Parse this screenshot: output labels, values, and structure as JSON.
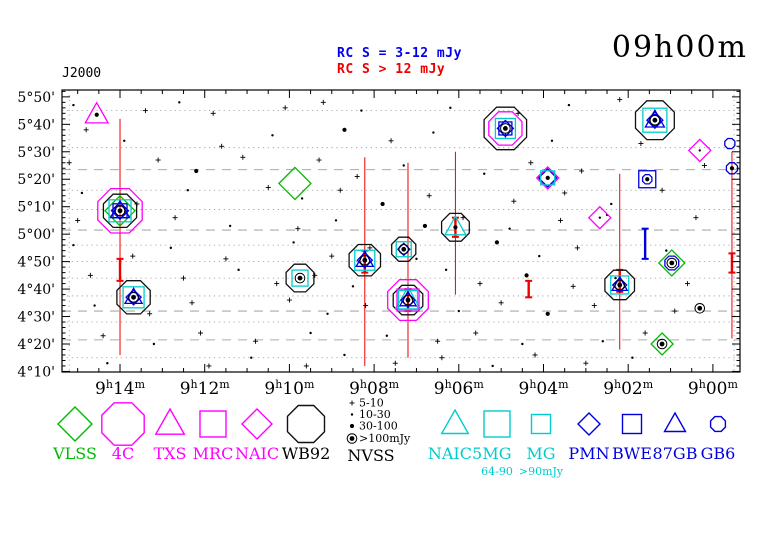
{
  "plot": {
    "title": "09h00m",
    "coord_label": "J2000",
    "flux_legend": [
      {
        "text": "RC S = 3-12 mJy",
        "color": "#0000ee"
      },
      {
        "text": "RC S > 12 mJy",
        "color": "#ee0000"
      }
    ]
  },
  "chart_data": {
    "type": "scatter",
    "title": "09h00m",
    "ra_range_min": [
      15.37,
      -0.64
    ],
    "dec_range_arcmin": [
      249.8,
      352.5
    ],
    "x_ticks": [
      {
        "ra_min": 14,
        "label": "9h14m"
      },
      {
        "ra_min": 12,
        "label": "9h12m"
      },
      {
        "ra_min": 10,
        "label": "9h10m"
      },
      {
        "ra_min": 8,
        "label": "9h08m"
      },
      {
        "ra_min": 6,
        "label": "9h06m"
      },
      {
        "ra_min": 4,
        "label": "9h04m"
      },
      {
        "ra_min": 2,
        "label": "9h02m"
      },
      {
        "ra_min": 0,
        "label": "9h00m"
      }
    ],
    "y_ticks": [
      {
        "dec_arcmin": 350,
        "label": "5°50'"
      },
      {
        "dec_arcmin": 340,
        "label": "5°40'"
      },
      {
        "dec_arcmin": 330,
        "label": "5°30'"
      },
      {
        "dec_arcmin": 320,
        "label": "5°20'"
      },
      {
        "dec_arcmin": 310,
        "label": "5°10'"
      },
      {
        "dec_arcmin": 300,
        "label": "5°00'"
      },
      {
        "dec_arcmin": 290,
        "label": "4°50'"
      },
      {
        "dec_arcmin": 280,
        "label": "4°40'"
      },
      {
        "dec_arcmin": 270,
        "label": "4°30'"
      },
      {
        "dec_arcmin": 260,
        "label": "4°20'"
      },
      {
        "dec_arcmin": 250,
        "label": "4°10'"
      }
    ],
    "dashed_dec_lines_arcmin": [
      323.5,
      301.5,
      272,
      261.5
    ],
    "dotted_dec_lines_arcmin": [
      345,
      331.5,
      316,
      309,
      296,
      290,
      284,
      277.5,
      268,
      255
    ],
    "dotted_ra_lines_min": [
      15.2,
      -0.5
    ],
    "catalog_styles": {
      "VLSS": {
        "shape": "diamond",
        "color": "#00bb00"
      },
      "4C": {
        "shape": "octagon",
        "color": "#ff00ff"
      },
      "TXS": {
        "shape": "triangle",
        "color": "#ff00ff"
      },
      "MRC": {
        "shape": "square",
        "color": "#ff00ff"
      },
      "NAIC": {
        "shape": "diamond",
        "color": "#ff00ff"
      },
      "WB92": {
        "shape": "octagon",
        "color": "#111111"
      },
      "NAIC5": {
        "shape": "triangle",
        "color": "#00cccc"
      },
      "MG": {
        "shape": "square",
        "color": "#00cccc"
      },
      "PMN": {
        "shape": "diamond",
        "color": "#0000dd"
      },
      "BWE": {
        "shape": "square",
        "color": "#0000dd"
      },
      "87GB": {
        "shape": "triangle",
        "color": "#0000dd"
      },
      "GB6": {
        "shape": "octagon",
        "color": "#0000dd"
      }
    },
    "sources": [
      {
        "ra_min": 14.55,
        "dec_arcmin": 343.5,
        "symbols": [
          [
            "TXS",
            24
          ],
          [
            "N2",
            0
          ]
        ]
      },
      {
        "ra_min": 14.0,
        "dec_arcmin": 308.5,
        "symbols": [
          [
            "4C",
            48
          ],
          [
            "WB92",
            36
          ],
          [
            "VLSS",
            30
          ],
          [
            "MG",
            22
          ],
          [
            "87GB",
            20
          ],
          [
            "PMN",
            17
          ],
          [
            "BWE",
            14
          ],
          [
            "GB6",
            11
          ],
          [
            "N3",
            0
          ]
        ]
      },
      {
        "ra_min": 9.87,
        "dec_arcmin": 318.5,
        "symbols": [
          [
            "VLSS",
            32
          ]
        ]
      },
      {
        "ra_min": 13.68,
        "dec_arcmin": 277,
        "symbols": [
          [
            "WB92",
            36
          ],
          [
            "MG",
            21
          ],
          [
            "87GB",
            18
          ],
          [
            "PMN",
            15
          ],
          [
            "GB6",
            11
          ],
          [
            "N3",
            0
          ]
        ]
      },
      {
        "ra_min": 9.75,
        "dec_arcmin": 284,
        "symbols": [
          [
            "WB92",
            30
          ],
          [
            "MG",
            16
          ],
          [
            "N3",
            0
          ]
        ]
      },
      {
        "ra_min": 8.22,
        "dec_arcmin": 290.5,
        "symbols": [
          [
            "WB92",
            34
          ],
          [
            "MG",
            20
          ],
          [
            "87GB",
            18
          ],
          [
            "PMN",
            15
          ],
          [
            "N3",
            0
          ]
        ]
      },
      {
        "ra_min": 7.3,
        "dec_arcmin": 294.5,
        "symbols": [
          [
            "WB92",
            26
          ],
          [
            "MG",
            15
          ],
          [
            "PMN",
            12
          ],
          [
            "N3",
            0
          ]
        ]
      },
      {
        "ra_min": 7.2,
        "dec_arcmin": 276,
        "symbols": [
          [
            "4C",
            44
          ],
          [
            "WB92",
            32
          ],
          [
            "NAIC5",
            26
          ],
          [
            "MRC",
            22
          ],
          [
            "MG",
            19
          ],
          [
            "87GB",
            17
          ],
          [
            "PMN",
            14
          ],
          [
            "N3",
            0
          ]
        ]
      },
      {
        "ra_min": 6.08,
        "dec_arcmin": 302.5,
        "symbols": [
          [
            "WB92",
            30
          ],
          [
            "NAIC5",
            22
          ],
          [
            "N2",
            0
          ]
        ]
      },
      {
        "ra_min": 4.9,
        "dec_arcmin": 338.5,
        "symbols": [
          [
            "WB92",
            46
          ],
          [
            "4C",
            36
          ],
          [
            "MG",
            20
          ],
          [
            "PMN",
            16
          ],
          [
            "BWE",
            13
          ],
          [
            "N3",
            0
          ]
        ]
      },
      {
        "ra_min": 3.9,
        "dec_arcmin": 320.5,
        "symbols": [
          [
            "NAIC",
            22
          ],
          [
            "PMN",
            18
          ],
          [
            "MG",
            14
          ],
          [
            "N2",
            0
          ]
        ]
      },
      {
        "ra_min": 1.37,
        "dec_arcmin": 341.5,
        "symbols": [
          [
            "WB92",
            42
          ],
          [
            "MG",
            24
          ],
          [
            "87GB",
            20
          ],
          [
            "PMN",
            16
          ],
          [
            "GB6",
            12
          ],
          [
            "N3",
            0
          ]
        ]
      },
      {
        "ra_min": 1.55,
        "dec_arcmin": 320,
        "symbols": [
          [
            "BWE",
            17
          ],
          [
            "GB6",
            10
          ],
          [
            "N2",
            0
          ]
        ]
      },
      {
        "ra_min": 2.67,
        "dec_arcmin": 306,
        "symbols": [
          [
            "NAIC",
            22
          ],
          [
            "N1",
            0
          ]
        ]
      },
      {
        "ra_min": 2.2,
        "dec_arcmin": 281.5,
        "symbols": [
          [
            "WB92",
            32
          ],
          [
            "MG",
            18
          ],
          [
            "87GB",
            16
          ],
          [
            "PMN",
            14
          ],
          [
            "N3",
            0
          ]
        ]
      },
      {
        "ra_min": 0.97,
        "dec_arcmin": 289.5,
        "symbols": [
          [
            "VLSS",
            26
          ],
          [
            "GB6",
            15
          ],
          [
            "N3",
            0
          ]
        ]
      },
      {
        "ra_min": 0.31,
        "dec_arcmin": 330.5,
        "symbols": [
          [
            "NAIC",
            22
          ],
          [
            "N1",
            0
          ]
        ]
      },
      {
        "ra_min": -0.45,
        "dec_arcmin": 324,
        "symbols": [
          [
            "GB6",
            12
          ],
          [
            "N2",
            0
          ]
        ]
      },
      {
        "ra_min": 1.2,
        "dec_arcmin": 260,
        "symbols": [
          [
            "VLSS",
            22
          ],
          [
            "N3",
            0
          ]
        ]
      },
      {
        "ra_min": 0.31,
        "dec_arcmin": 273,
        "symbols": [
          [
            "N3",
            0
          ]
        ]
      },
      {
        "ra_min": -0.4,
        "dec_arcmin": 333,
        "symbols": [
          [
            "GB6",
            11
          ]
        ]
      }
    ],
    "error_bars": [
      {
        "ra_min": 14.0,
        "dec_from": 256,
        "dec_to": 342,
        "color": "#ee0000",
        "thick": false,
        "caps": false
      },
      {
        "ra_min": 14.0,
        "dec_from": 283,
        "dec_to": 291,
        "color": "#ee0000",
        "thick": true,
        "caps": true
      },
      {
        "ra_min": 8.22,
        "dec_from": 252,
        "dec_to": 328,
        "color": "#ee0000",
        "thick": false,
        "caps": false
      },
      {
        "ra_min": 8.22,
        "dec_from": 286,
        "dec_to": 294,
        "color": "#ee0000",
        "thick": true,
        "caps": true
      },
      {
        "ra_min": 7.2,
        "dec_from": 255,
        "dec_to": 326,
        "color": "#ee0000",
        "thick": false,
        "caps": false
      },
      {
        "ra_min": 7.2,
        "dec_from": 272,
        "dec_to": 280,
        "color": "#ee0000",
        "thick": true,
        "caps": true
      },
      {
        "ra_min": 6.08,
        "dec_from": 278,
        "dec_to": 330,
        "color": "#ee0000",
        "thick": false,
        "caps": false
      },
      {
        "ra_min": 6.08,
        "dec_from": 299,
        "dec_to": 306,
        "color": "#ee0000",
        "thick": true,
        "caps": true
      },
      {
        "ra_min": 4.35,
        "dec_from": 277,
        "dec_to": 283,
        "color": "#ee0000",
        "thick": true,
        "caps": true
      },
      {
        "ra_min": 2.2,
        "dec_from": 258,
        "dec_to": 322,
        "color": "#ee0000",
        "thick": false,
        "caps": false
      },
      {
        "ra_min": 2.2,
        "dec_from": 279,
        "dec_to": 287,
        "color": "#ee0000",
        "thick": true,
        "caps": true
      },
      {
        "ra_min": 1.6,
        "dec_from": 291,
        "dec_to": 302,
        "color": "#0000dd",
        "thick": true,
        "caps": true
      },
      {
        "ra_min": -0.45,
        "dec_from": 262,
        "dec_to": 330,
        "color": "#ee0000",
        "thick": false,
        "caps": false
      },
      {
        "ra_min": -0.45,
        "dec_from": 286,
        "dec_to": 293,
        "color": "#ee0000",
        "thick": true,
        "caps": true
      }
    ],
    "field_points": [
      [
        15.1,
        347,
        1
      ],
      [
        13.4,
        345,
        0
      ],
      [
        12.6,
        348,
        1
      ],
      [
        11.8,
        344,
        0
      ],
      [
        10.1,
        346,
        0
      ],
      [
        9.2,
        348,
        0
      ],
      [
        8.3,
        345,
        1
      ],
      [
        6.2,
        346,
        1
      ],
      [
        4.6,
        344,
        0
      ],
      [
        3.4,
        347,
        1
      ],
      [
        2.2,
        349,
        0
      ],
      [
        14.8,
        338,
        0
      ],
      [
        13.9,
        334,
        1
      ],
      [
        11.6,
        332,
        0
      ],
      [
        10.4,
        336,
        1
      ],
      [
        8.7,
        338,
        2
      ],
      [
        7.6,
        334,
        0
      ],
      [
        6.6,
        337,
        1
      ],
      [
        4.9,
        336,
        0
      ],
      [
        3.8,
        334,
        1
      ],
      [
        1.7,
        333,
        0
      ],
      [
        15.2,
        326,
        0
      ],
      [
        13.1,
        327,
        0
      ],
      [
        12.2,
        323,
        2
      ],
      [
        11.1,
        328,
        0
      ],
      [
        9.3,
        327,
        0
      ],
      [
        8.4,
        321,
        0
      ],
      [
        7.3,
        325,
        1
      ],
      [
        5.4,
        322,
        1
      ],
      [
        4.3,
        326,
        0
      ],
      [
        3.1,
        323,
        0
      ],
      [
        0.2,
        325,
        0
      ],
      [
        14.9,
        315,
        1
      ],
      [
        13.6,
        311,
        0
      ],
      [
        12.4,
        316,
        1
      ],
      [
        10.5,
        317,
        0
      ],
      [
        9.7,
        313,
        1
      ],
      [
        8.8,
        316,
        0
      ],
      [
        7.8,
        311,
        2
      ],
      [
        6.7,
        314,
        0
      ],
      [
        4.7,
        312,
        0
      ],
      [
        3.5,
        315,
        0
      ],
      [
        2.4,
        311,
        1
      ],
      [
        1.2,
        316,
        0
      ],
      [
        15.0,
        305,
        0
      ],
      [
        12.7,
        306,
        0
      ],
      [
        11.4,
        303,
        1
      ],
      [
        9.8,
        302,
        0
      ],
      [
        8.9,
        305,
        1
      ],
      [
        6.8,
        303,
        2
      ],
      [
        5.9,
        306,
        0
      ],
      [
        4.8,
        302,
        1
      ],
      [
        3.6,
        305,
        0
      ],
      [
        2.5,
        307,
        1
      ],
      [
        0.4,
        306,
        0
      ],
      [
        15.1,
        296,
        1
      ],
      [
        13.7,
        292,
        0
      ],
      [
        12.8,
        295,
        1
      ],
      [
        11.5,
        291,
        0
      ],
      [
        9.9,
        297,
        1
      ],
      [
        9.0,
        292,
        0
      ],
      [
        8.1,
        295,
        0
      ],
      [
        7.0,
        291,
        1
      ],
      [
        5.1,
        297,
        2
      ],
      [
        4.1,
        292,
        1
      ],
      [
        3.2,
        295,
        0
      ],
      [
        1.1,
        294,
        1
      ],
      [
        14.7,
        285,
        0
      ],
      [
        12.5,
        284,
        0
      ],
      [
        11.2,
        287,
        1
      ],
      [
        10.3,
        282,
        0
      ],
      [
        9.4,
        285,
        0
      ],
      [
        8.5,
        281,
        1
      ],
      [
        6.3,
        287,
        1
      ],
      [
        5.5,
        282,
        0
      ],
      [
        4.4,
        285,
        2
      ],
      [
        3.3,
        281,
        0
      ],
      [
        2.3,
        284,
        1
      ],
      [
        0.6,
        282,
        0
      ],
      [
        14.6,
        274,
        1
      ],
      [
        13.3,
        271,
        0
      ],
      [
        12.3,
        275,
        0
      ],
      [
        10.0,
        276,
        0
      ],
      [
        9.1,
        271,
        1
      ],
      [
        8.2,
        274,
        0
      ],
      [
        6.0,
        272,
        1
      ],
      [
        5.0,
        275,
        0
      ],
      [
        3.9,
        271,
        2
      ],
      [
        2.8,
        274,
        0
      ],
      [
        0.9,
        272,
        0
      ],
      [
        14.4,
        263,
        0
      ],
      [
        13.2,
        260,
        1
      ],
      [
        12.1,
        264,
        0
      ],
      [
        10.8,
        261,
        0
      ],
      [
        9.5,
        264,
        1
      ],
      [
        7.7,
        263,
        1
      ],
      [
        6.5,
        261,
        0
      ],
      [
        5.6,
        264,
        0
      ],
      [
        4.5,
        260,
        1
      ],
      [
        2.6,
        261,
        1
      ],
      [
        1.6,
        264,
        0
      ],
      [
        14.3,
        253,
        1
      ],
      [
        11.9,
        252,
        0
      ],
      [
        10.9,
        255,
        1
      ],
      [
        9.6,
        252,
        0
      ],
      [
        8.7,
        256,
        1
      ],
      [
        7.5,
        253,
        0
      ],
      [
        6.4,
        255,
        0
      ],
      [
        5.2,
        252,
        1
      ],
      [
        4.2,
        256,
        0
      ],
      [
        3.0,
        253,
        0
      ],
      [
        1.9,
        255,
        1
      ]
    ]
  },
  "legend": {
    "nvss_sizes": [
      "5-10",
      "10-30",
      "30-100",
      ">100mJy"
    ],
    "entries": [
      {
        "cat": "VLSS",
        "label": "VLSS",
        "size": 34
      },
      {
        "cat": "4C",
        "label": "4C",
        "size": 46
      },
      {
        "cat": "TXS",
        "label": "TXS",
        "size": 30
      },
      {
        "cat": "MRC",
        "label": "MRC",
        "size": 26
      },
      {
        "cat": "NAIC",
        "label": "NAIC",
        "size": 30
      },
      {
        "cat": "WB92",
        "label": "WB92",
        "size": 40
      },
      {
        "cat": "NVSS",
        "label": "NVSS",
        "size": 0,
        "key": true
      },
      {
        "cat": "NAIC5",
        "label": "NAIC5",
        "size": 28
      },
      {
        "cat": "MG",
        "label": "MG",
        "size": 26,
        "sublabel": "64-90"
      },
      {
        "cat": "MG",
        "label": "MG",
        "size": 19,
        "sublabel": ">90mJy"
      },
      {
        "cat": "PMN",
        "label": "PMN",
        "size": 22
      },
      {
        "cat": "BWE",
        "label": "BWE",
        "size": 19
      },
      {
        "cat": "87GB",
        "label": "87GB",
        "size": 22
      },
      {
        "cat": "GB6",
        "label": "GB6",
        "size": 16
      }
    ]
  }
}
